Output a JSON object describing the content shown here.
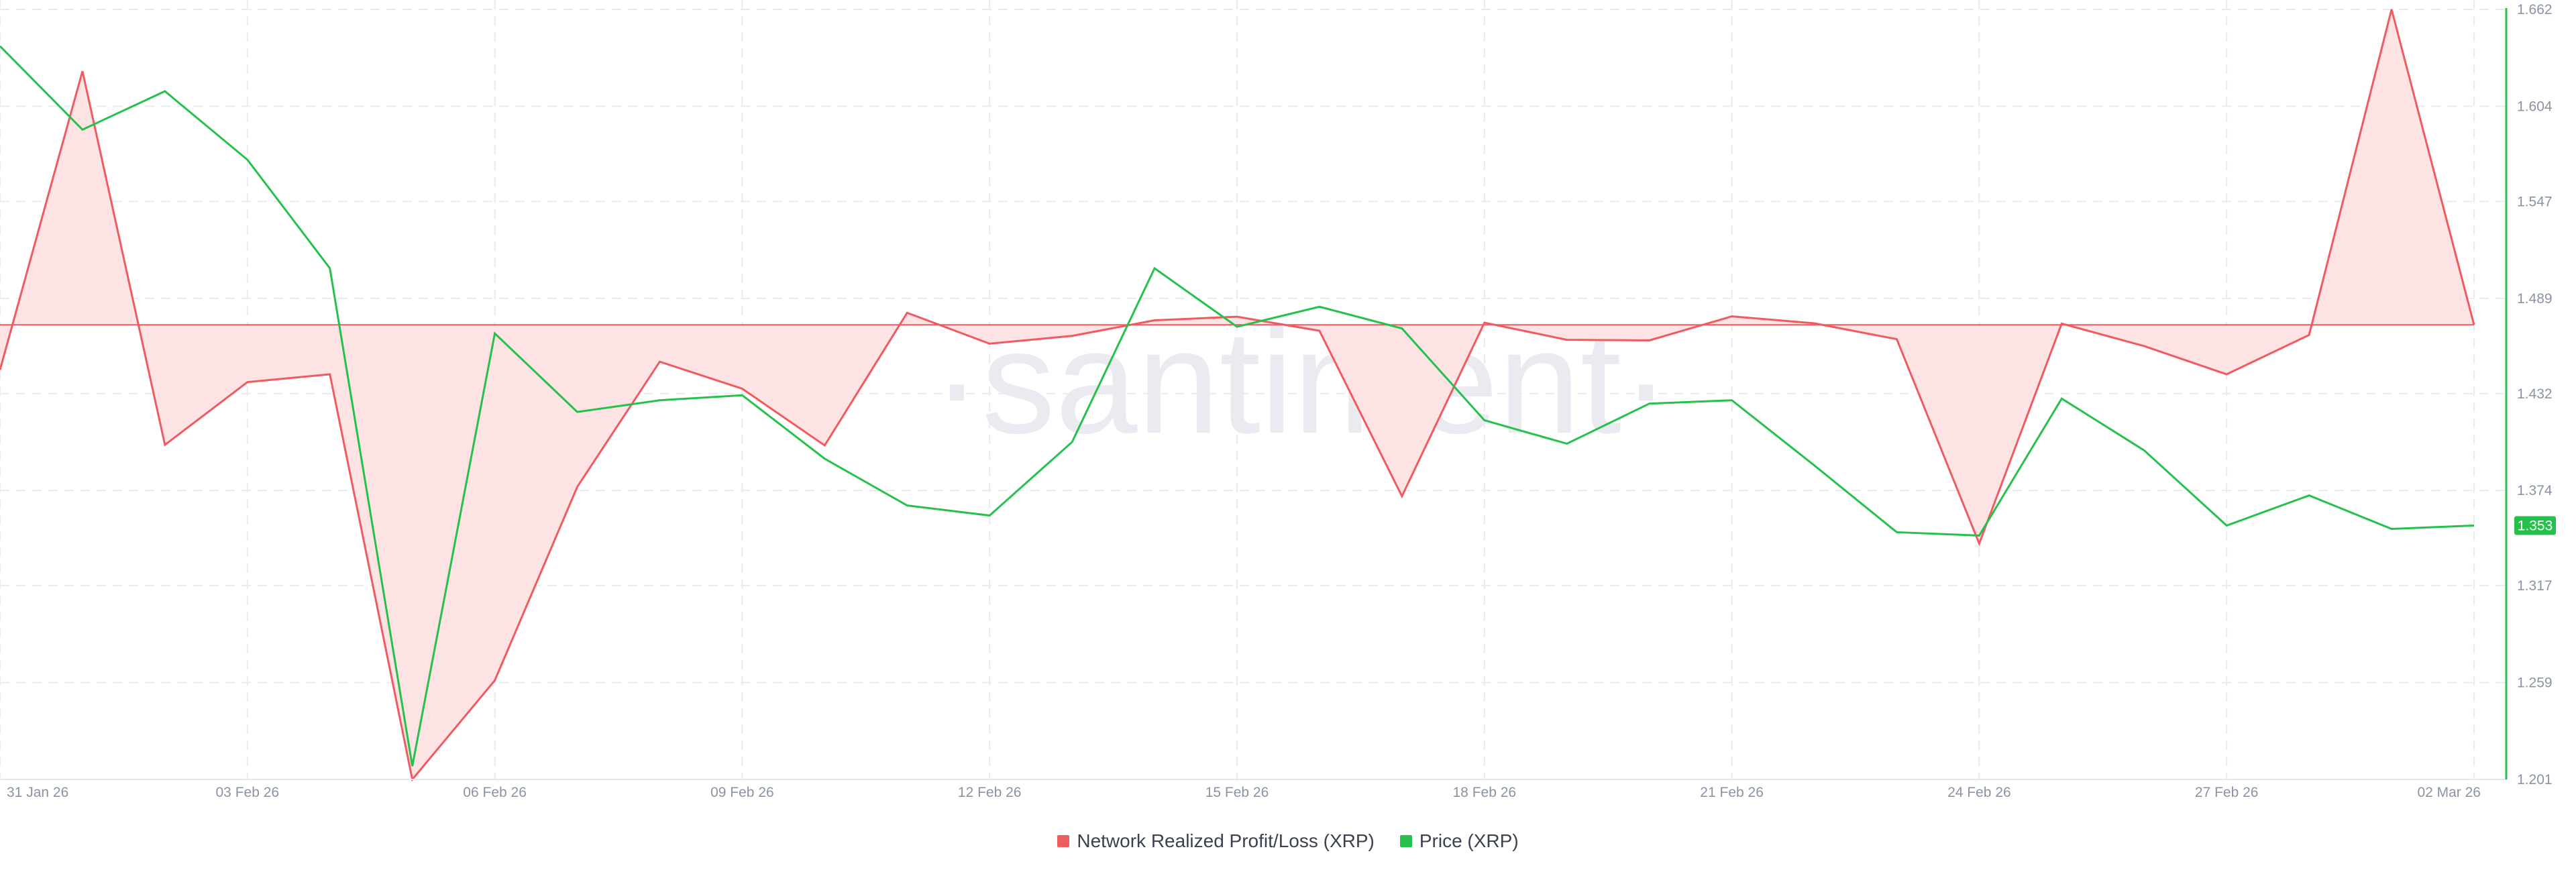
{
  "watermark": "·santiment·",
  "colors": {
    "nrpl_line": "#ef5b61",
    "nrpl_fill": "#fde3e4",
    "price_line": "#26c14d",
    "price_badge_bg": "#26c14d",
    "price_badge_text": "#ffffff",
    "grid": "#e8ebf0",
    "axis_text": "#8a93a6",
    "watermark": "#e9ebf1"
  },
  "chart_data": {
    "type": "line",
    "title": "",
    "x": [
      "31 Jan 26",
      "01 Feb 26",
      "02 Feb 26",
      "03 Feb 26",
      "04 Feb 26",
      "05 Feb 26",
      "06 Feb 26",
      "07 Feb 26",
      "08 Feb 26",
      "09 Feb 26",
      "10 Feb 26",
      "11 Feb 26",
      "12 Feb 26",
      "13 Feb 26",
      "14 Feb 26",
      "15 Feb 26",
      "16 Feb 26",
      "17 Feb 26",
      "18 Feb 26",
      "19 Feb 26",
      "20 Feb 26",
      "21 Feb 26",
      "22 Feb 26",
      "23 Feb 26",
      "24 Feb 26",
      "25 Feb 26",
      "26 Feb 26",
      "27 Feb 26",
      "28 Feb 26",
      "01 Mar 26",
      "02 Mar 26"
    ],
    "x_tick_labels": [
      "31 Jan 26",
      "03 Feb 26",
      "06 Feb 26",
      "09 Feb 26",
      "12 Feb 26",
      "15 Feb 26",
      "18 Feb 26",
      "21 Feb 26",
      "24 Feb 26",
      "27 Feb 26",
      "02 Mar 26"
    ],
    "x_tick_indices": [
      0,
      3,
      6,
      9,
      12,
      15,
      18,
      21,
      24,
      27,
      30
    ],
    "series": [
      {
        "name": "Network Realized Profit/Loss (XRP)",
        "axis": "hidden",
        "baseline": 0,
        "values": [
          -150,
          845,
          -400,
          -191,
          -165,
          -1515,
          -1185,
          -540,
          -123,
          -213,
          -402,
          40,
          -63,
          -37,
          15,
          27,
          -20,
          -571,
          7,
          -50,
          -52,
          28,
          5,
          -48,
          -729,
          4,
          -71,
          -165,
          -34,
          1051,
          0
        ]
      },
      {
        "name": "Price (XRP)",
        "axis": "right",
        "values": [
          1.64,
          1.59,
          1.613,
          1.572,
          1.507,
          1.209,
          1.468,
          1.421,
          1.428,
          1.431,
          1.393,
          1.365,
          1.359,
          1.403,
          1.507,
          1.472,
          1.484,
          1.471,
          1.416,
          1.402,
          1.426,
          1.428,
          1.389,
          1.349,
          1.347,
          1.429,
          1.398,
          1.353,
          1.371,
          1.351,
          1.353
        ]
      }
    ],
    "nrpl_range": [
      -1515,
      1051
    ],
    "price_axis": {
      "ylim": [
        1.201,
        1.662
      ],
      "ticks": [
        "1.201",
        "1.259",
        "1.317",
        "1.374",
        "1.432",
        "1.489",
        "1.547",
        "1.604",
        "1.662"
      ]
    },
    "current_price_label": "1.353",
    "grid": true,
    "legend": {
      "position": "bottom-center",
      "items": [
        "Network Realized Profit/Loss (XRP)",
        "Price (XRP)"
      ]
    }
  }
}
